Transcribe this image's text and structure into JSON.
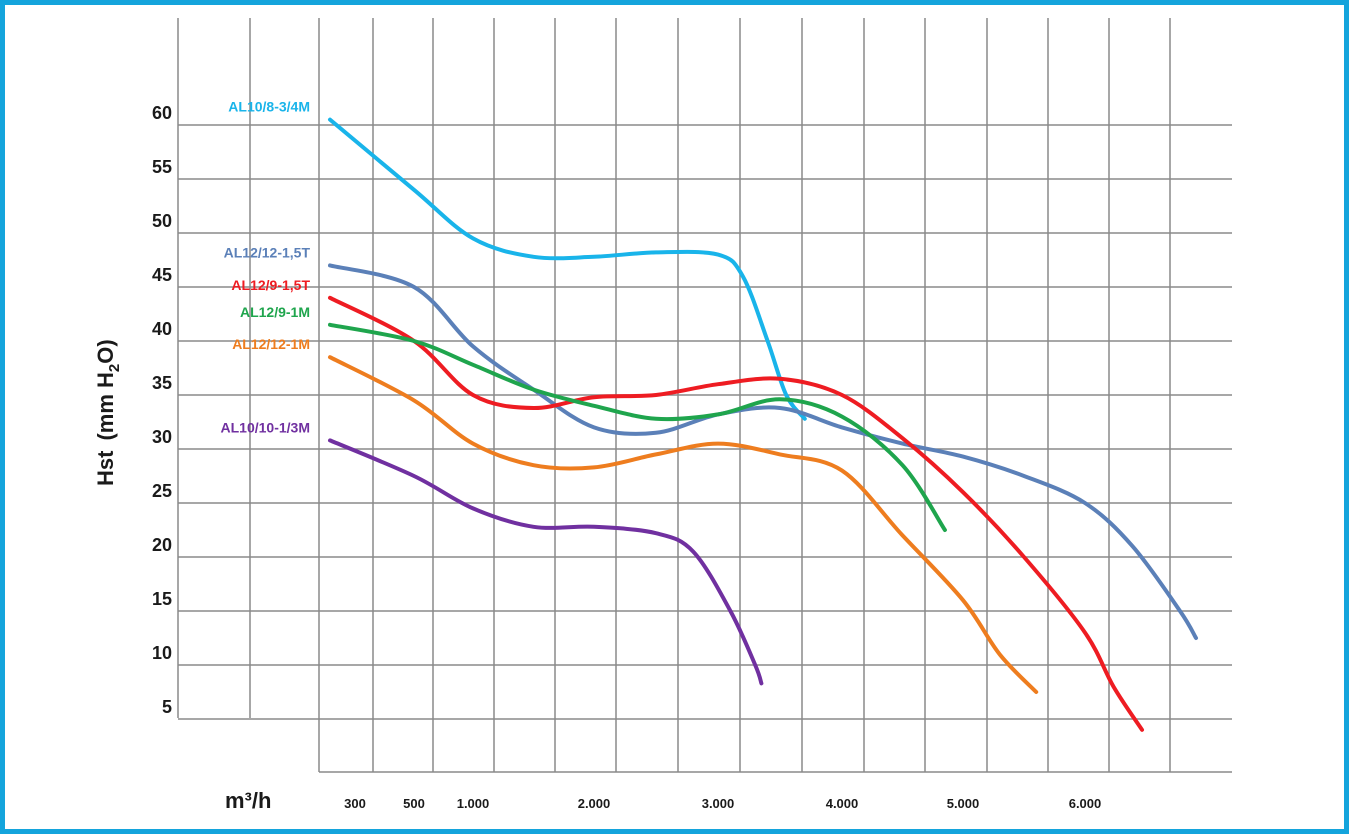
{
  "chart_data": {
    "type": "line",
    "title": "",
    "xlabel": "m³/h",
    "ylabel_main": "Hst",
    "ylabel_unit_pre": "(mm H",
    "ylabel_unit_sub": "2",
    "ylabel_unit_post": "O)",
    "grid": true,
    "ylim": [
      0,
      63
    ],
    "yticks": [
      5,
      10,
      15,
      20,
      25,
      30,
      35,
      40,
      45,
      50,
      55,
      60
    ],
    "xticks": [
      {
        "value": 300,
        "label": "300"
      },
      {
        "value": 500,
        "label": "500"
      },
      {
        "value": 1000,
        "label": "1.000"
      },
      {
        "value": 2000,
        "label": "2.000"
      },
      {
        "value": 3000,
        "label": "3.000"
      },
      {
        "value": 4000,
        "label": "4.000"
      },
      {
        "value": 5000,
        "label": "5.000"
      },
      {
        "value": 6000,
        "label": "6.000"
      }
    ],
    "series": [
      {
        "name": "AL10/8-3/4M",
        "color": "#19b4ea",
        "points": [
          [
            260,
            60.5
          ],
          [
            500,
            54
          ],
          [
            1000,
            49.5
          ],
          [
            1500,
            47.8
          ],
          [
            2000,
            47.8
          ],
          [
            2500,
            48.2
          ],
          [
            3000,
            48.0
          ],
          [
            3200,
            46
          ],
          [
            3400,
            40
          ],
          [
            3550,
            35
          ],
          [
            3700,
            32.8
          ]
        ]
      },
      {
        "name": "AL12/12-1,5T",
        "color": "#5b80b8",
        "points": [
          [
            260,
            47
          ],
          [
            500,
            45
          ],
          [
            1000,
            39.5
          ],
          [
            1500,
            35.5
          ],
          [
            2000,
            32
          ],
          [
            2500,
            31.5
          ],
          [
            3000,
            33.2
          ],
          [
            3500,
            33.8
          ],
          [
            4000,
            32
          ],
          [
            4500,
            30.5
          ],
          [
            5000,
            29.3
          ],
          [
            5500,
            27.5
          ],
          [
            6000,
            25
          ],
          [
            6500,
            21
          ],
          [
            7000,
            15
          ],
          [
            7200,
            12.5
          ]
        ]
      },
      {
        "name": "AL12/9-1,5T",
        "color": "#ee1c22",
        "points": [
          [
            260,
            44
          ],
          [
            500,
            40
          ],
          [
            1000,
            35
          ],
          [
            1500,
            33.8
          ],
          [
            2000,
            34.8
          ],
          [
            2500,
            35
          ],
          [
            3000,
            36
          ],
          [
            3500,
            36.5
          ],
          [
            4000,
            35
          ],
          [
            4500,
            31
          ],
          [
            5000,
            26
          ],
          [
            5500,
            20
          ],
          [
            6000,
            13
          ],
          [
            6300,
            8
          ],
          [
            6600,
            4
          ]
        ]
      },
      {
        "name": "AL12/9-1M",
        "color": "#1fa54d",
        "points": [
          [
            260,
            41.5
          ],
          [
            500,
            40
          ],
          [
            1000,
            37.8
          ],
          [
            1500,
            35.5
          ],
          [
            2000,
            34
          ],
          [
            2500,
            32.8
          ],
          [
            3000,
            33.2
          ],
          [
            3500,
            34.6
          ],
          [
            4000,
            33
          ],
          [
            4500,
            28.5
          ],
          [
            4850,
            22.5
          ]
        ]
      },
      {
        "name": "AL12/12-1M",
        "color": "#ee7d1f",
        "points": [
          [
            260,
            38.5
          ],
          [
            500,
            34.5
          ],
          [
            1000,
            30.5
          ],
          [
            1500,
            28.5
          ],
          [
            2000,
            28.3
          ],
          [
            2500,
            29.5
          ],
          [
            3000,
            30.5
          ],
          [
            3500,
            29.5
          ],
          [
            4000,
            28
          ],
          [
            4500,
            22
          ],
          [
            5000,
            16
          ],
          [
            5300,
            11
          ],
          [
            5600,
            7.5
          ]
        ]
      },
      {
        "name": "AL10/10-1/3M",
        "color": "#7030a0",
        "points": [
          [
            260,
            30.8
          ],
          [
            500,
            27.5
          ],
          [
            1000,
            24.5
          ],
          [
            1500,
            22.8
          ],
          [
            2000,
            22.8
          ],
          [
            2500,
            22.2
          ],
          [
            2800,
            20.5
          ],
          [
            3100,
            15
          ],
          [
            3300,
            10
          ],
          [
            3350,
            8.3
          ]
        ]
      }
    ]
  }
}
